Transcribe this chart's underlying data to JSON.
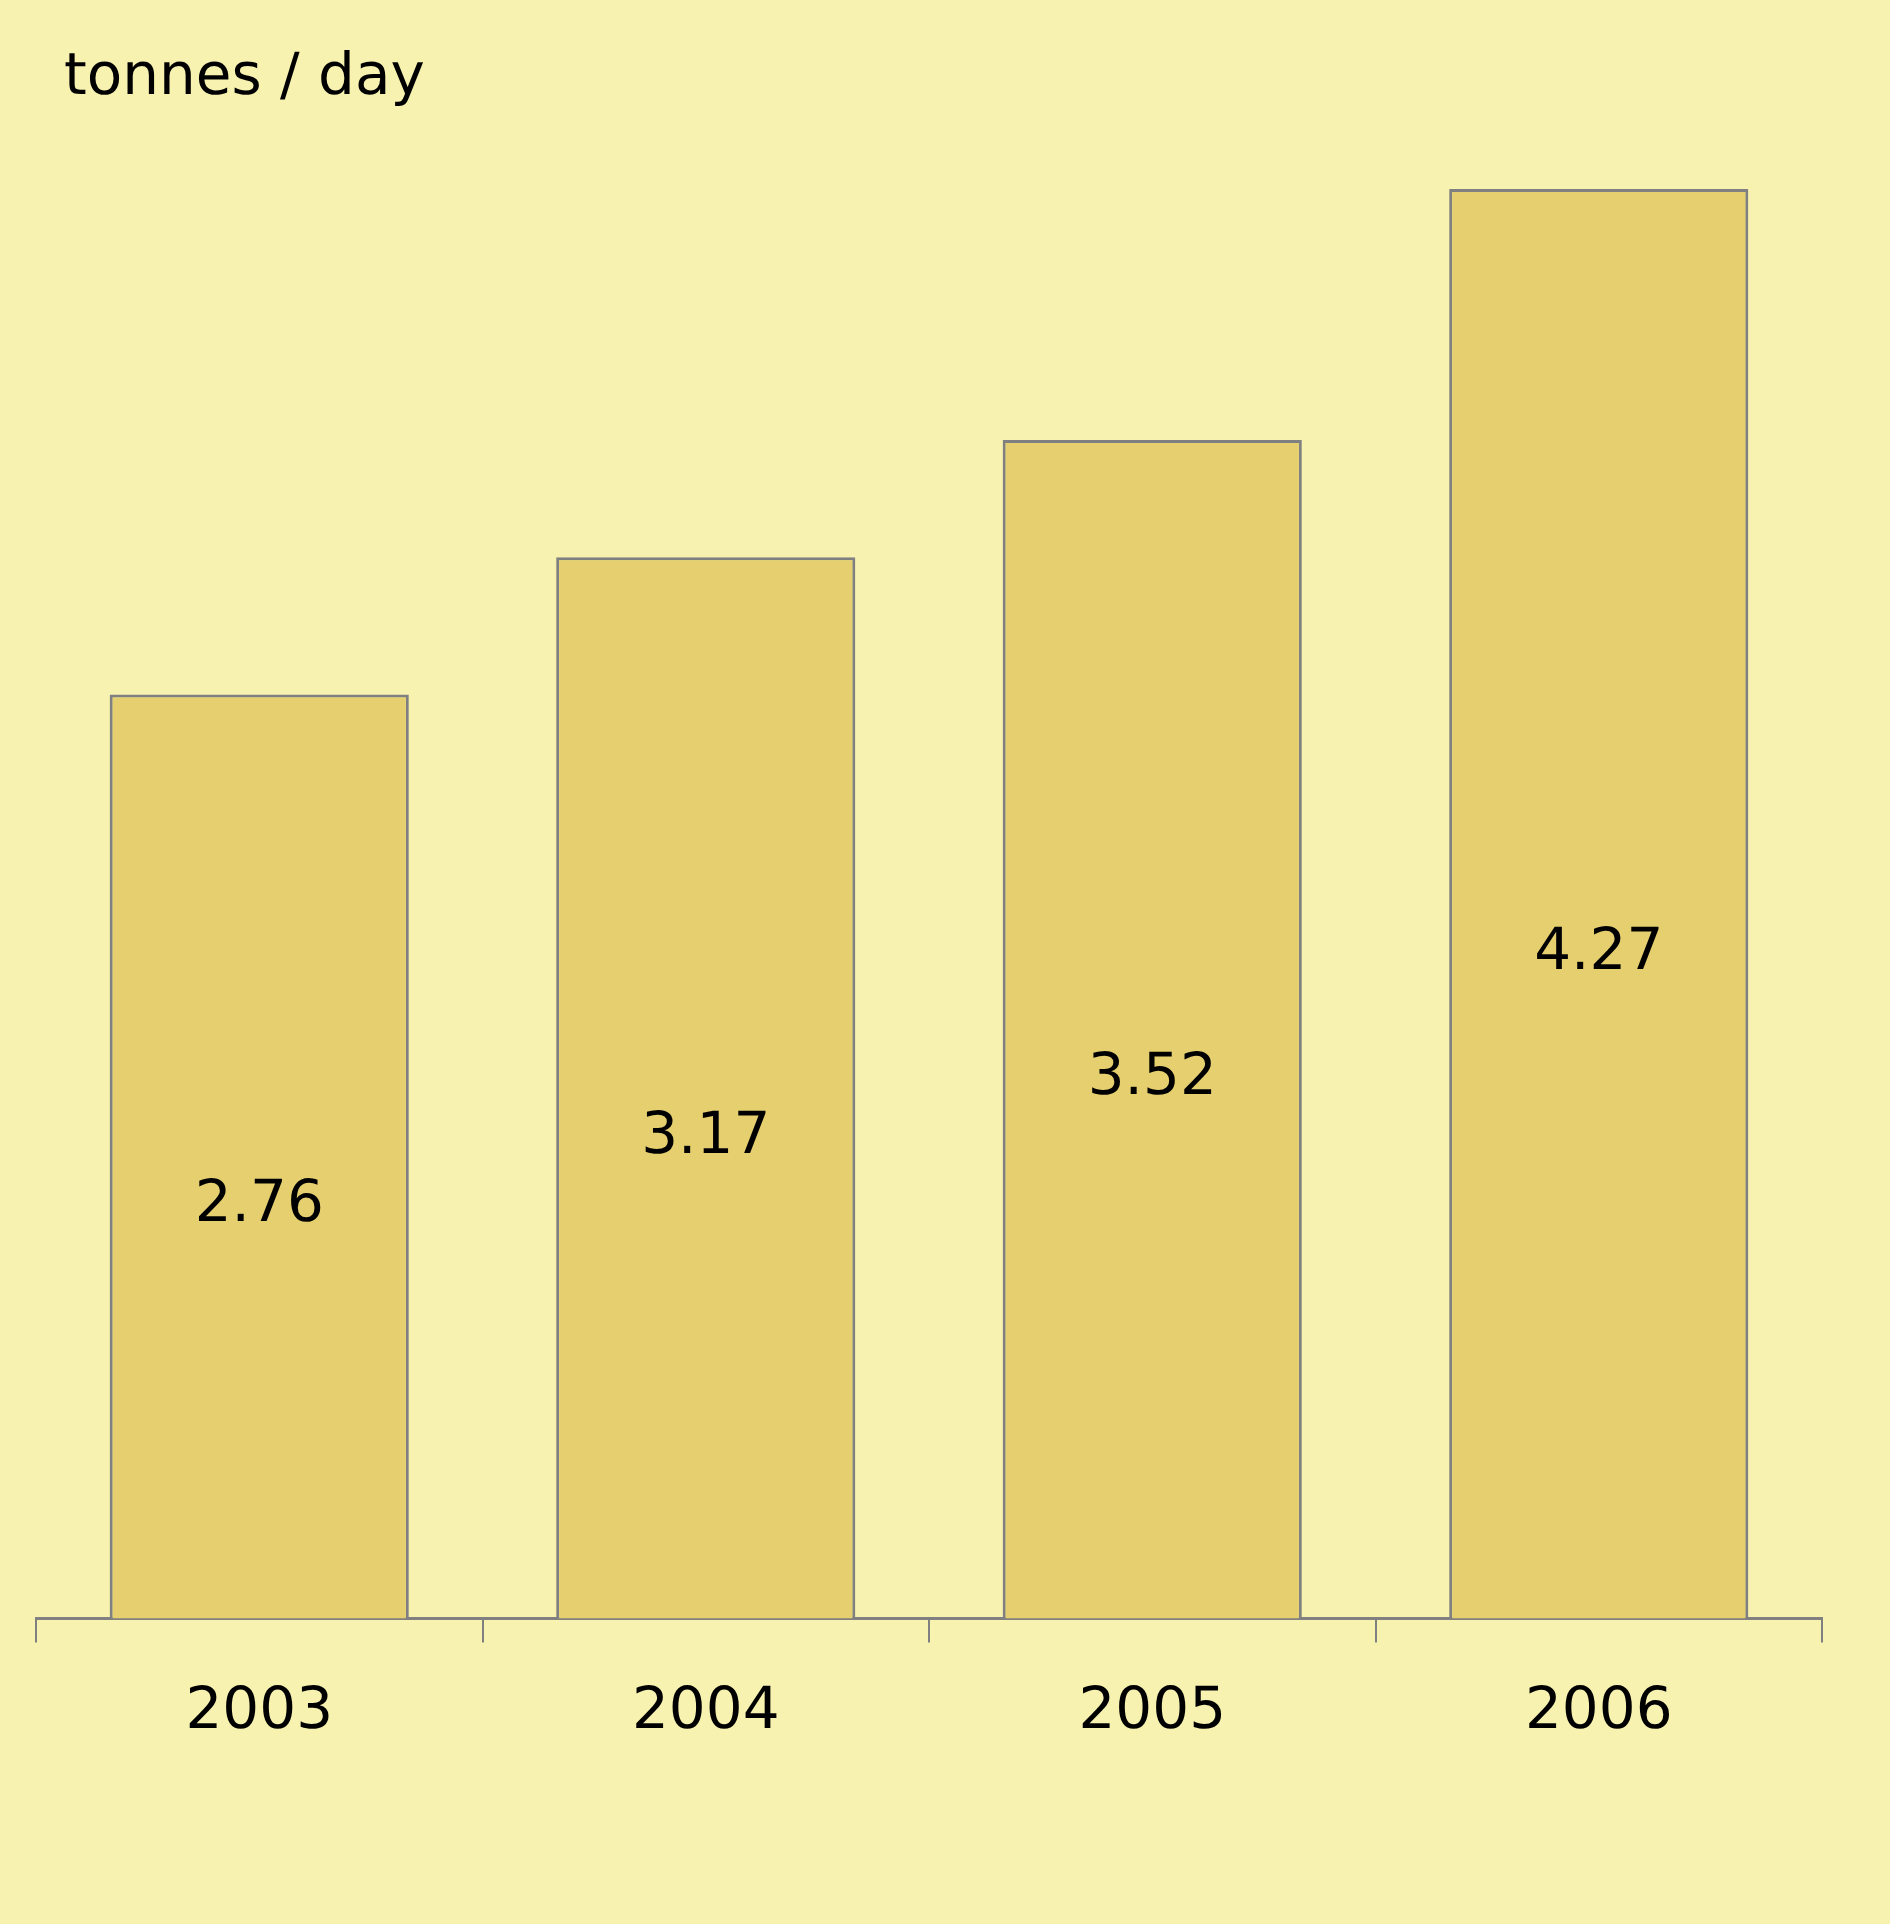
{
  "chart_data": {
    "type": "bar",
    "ylabel": "tonnes / day",
    "categories": [
      "2003",
      "2004",
      "2005",
      "2006"
    ],
    "values": [
      2.76,
      3.17,
      3.52,
      4.27
    ],
    "color": "#e5cf6e",
    "data_labels": true,
    "grid": false,
    "legend": false
  }
}
